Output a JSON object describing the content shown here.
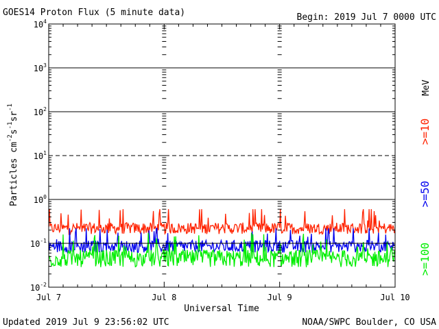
{
  "chart_data": {
    "type": "line",
    "title": "GOES14 Proton Flux (5 minute data)",
    "begin_label": "Begin: 2019 Jul 7 0000 UTC",
    "xlabel": "Universal Time",
    "ylabel_base": "Particles cm",
    "ylabel_sup1": "-2",
    "ylabel_mid1": "s",
    "ylabel_sup2": "-1",
    "ylabel_mid2": "sr",
    "ylabel_sup3": "-1",
    "x_ticks": [
      "Jul 7",
      "Jul 8",
      "Jul 9",
      "Jul 10"
    ],
    "x_range_days": [
      0,
      3
    ],
    "y_scale": "log",
    "y_range": [
      0.01,
      10000
    ],
    "y_tick_base": "10",
    "y_tick_exponents": [
      "-2",
      "-1",
      "0",
      "1",
      "2",
      "3",
      "4"
    ],
    "energy_unit": "MeV",
    "series": [
      {
        "name": ">=10",
        "color": "#ff2200",
        "median": 0.22,
        "spread": 0.13,
        "spike_max": 0.6
      },
      {
        "name": ">=50",
        "color": "#0000ee",
        "median": 0.085,
        "spread": 0.14,
        "spike_max": 0.22
      },
      {
        "name": ">=100",
        "color": "#00ee00",
        "median": 0.045,
        "spread": 0.2,
        "spike_max": 0.18
      }
    ],
    "dashed_level": 10
  },
  "footer": {
    "updated": "Updated 2019 Jul  9 23:56:02 UTC",
    "source": "NOAA/SWPC Boulder, CO USA"
  }
}
